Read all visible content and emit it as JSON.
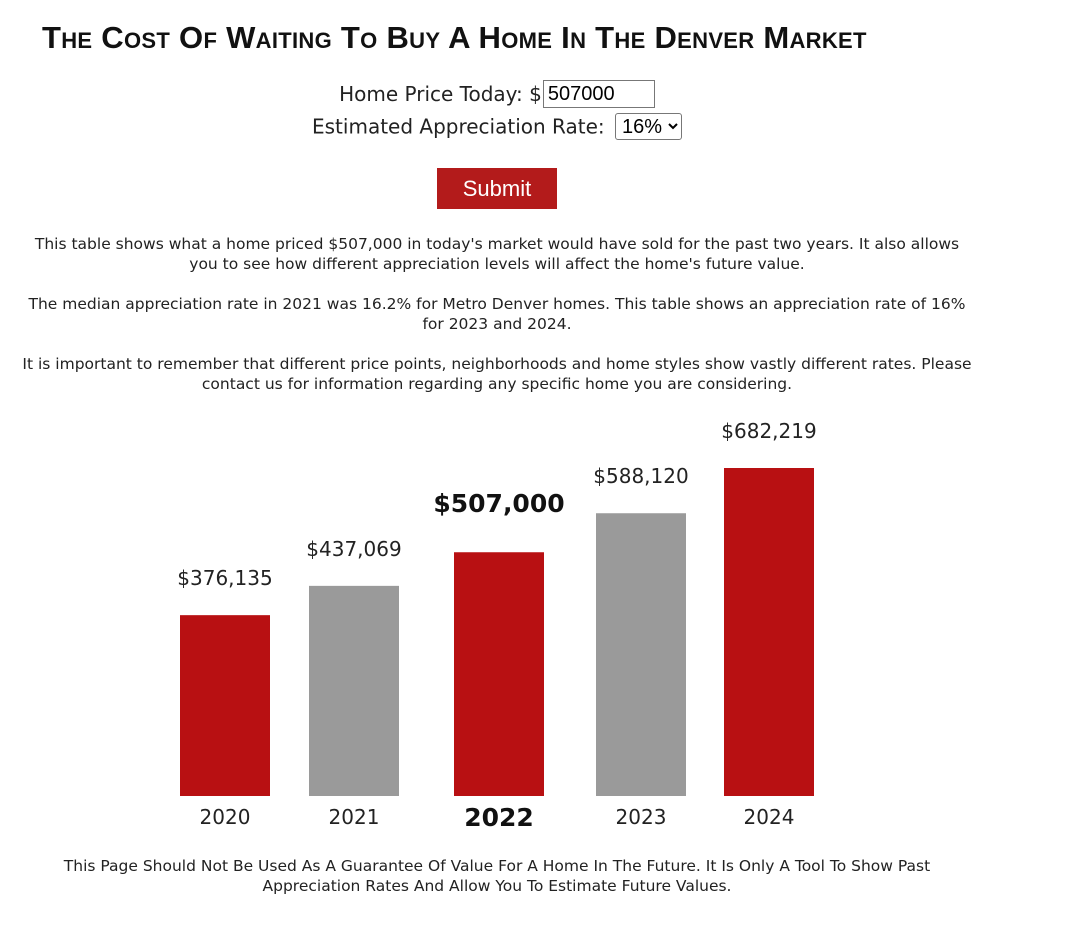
{
  "title": "The Cost Of Waiting To Buy A Home In The Denver Market",
  "form": {
    "price_label": "Home Price Today:",
    "currency_prefix": "$",
    "price_value": "507000",
    "rate_label": "Estimated Appreciation Rate:",
    "rate_selected": "16%",
    "submit_label": "Submit"
  },
  "paragraphs": [
    "This table shows what a home priced $507,000 in today's market would have sold for the past two years. It also allows you to see how different appreciation levels will affect the home's future value.",
    "The median appreciation rate in 2021 was 16.2% for Metro Denver homes. This table shows an appreciation rate of 16% for 2023 and 2024.",
    "It is important to remember that different price points, neighborhoods and home styles show vastly different rates. Please contact us for information regarding any specific home you are considering."
  ],
  "chart_data": {
    "type": "bar",
    "title": "",
    "xlabel": "",
    "ylabel": "",
    "categories": [
      "2020",
      "2021",
      "2022",
      "2023",
      "2024"
    ],
    "values": [
      376135,
      437069,
      507000,
      588120,
      682219
    ],
    "value_labels": [
      "$376,135",
      "$437,069",
      "$507,000",
      "$588,120",
      "$682,219"
    ],
    "bar_colors": [
      "#b81012",
      "#9a9a9a",
      "#b81012",
      "#9a9a9a",
      "#b81012"
    ],
    "highlight_category": "2022",
    "ylim": [
      0,
      682219
    ],
    "grid": false,
    "legend": "none"
  },
  "disclaimer": "This Page Should Not Be Used As A Guarantee Of Value For A Home In The Future. It Is Only A Tool To Show Past Appreciation Rates And Allow You To Estimate Future Values."
}
